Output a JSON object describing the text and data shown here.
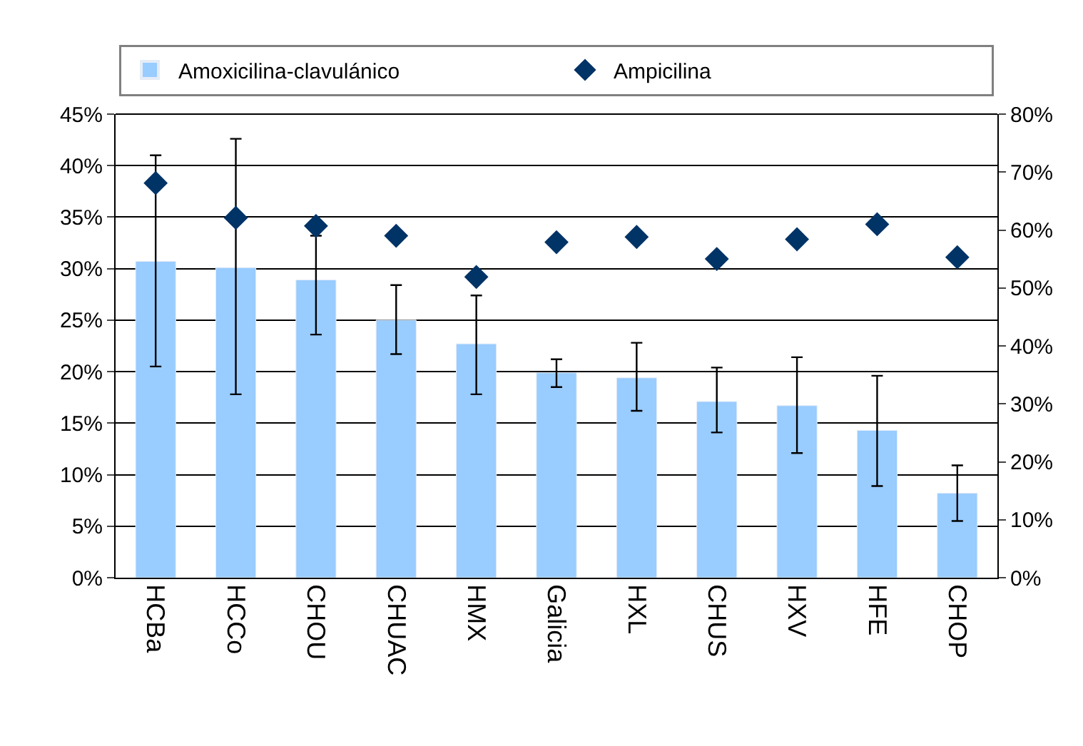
{
  "chart_data": {
    "type": "bar",
    "categories": [
      "HCBa",
      "HCCo",
      "CHOU",
      "CHUAC",
      "HMX",
      "Galicia",
      "HXL",
      "CHUS",
      "HXV",
      "HFE",
      "CHOP"
    ],
    "series": [
      {
        "name": "Amoxicilina-clavulánico",
        "color": "#99ccff",
        "values": [
          30.7,
          30.1,
          28.9,
          25.0,
          22.7,
          19.9,
          19.4,
          17.1,
          16.7,
          14.3,
          8.2
        ],
        "errors": [
          [
            20.5,
            41.0
          ],
          [
            17.8,
            42.6
          ],
          [
            23.6,
            33.2
          ],
          [
            21.7,
            28.4
          ],
          [
            17.8,
            27.4
          ],
          [
            18.5,
            21.2
          ],
          [
            16.2,
            22.8
          ],
          [
            14.1,
            20.4
          ],
          [
            12.1,
            21.4
          ],
          [
            8.9,
            19.6
          ],
          [
            5.5,
            10.9
          ]
        ]
      },
      {
        "name": "Ampicilina",
        "type": "scatter",
        "axis": "y2",
        "color": "#003366",
        "marker": "diamond",
        "values": [
          68.1,
          62.1,
          60.7,
          59.0,
          51.9,
          57.9,
          58.8,
          55.0,
          58.4,
          61.0,
          55.3
        ]
      }
    ],
    "ylim": [
      0,
      45
    ],
    "yticks": [
      {
        "value": 0,
        "label": "0%"
      },
      {
        "value": 5,
        "label": "5%"
      },
      {
        "value": 10,
        "label": "10%"
      },
      {
        "value": 15,
        "label": "15%"
      },
      {
        "value": 20,
        "label": "20%"
      },
      {
        "value": 25,
        "label": "25%"
      },
      {
        "value": 30,
        "label": "30%"
      },
      {
        "value": 35,
        "label": "35%"
      },
      {
        "value": 40,
        "label": "40%"
      },
      {
        "value": 45,
        "label": "45%"
      }
    ],
    "y2lim": [
      0,
      80
    ],
    "y2ticks": [
      {
        "value": 0,
        "label": "0%"
      },
      {
        "value": 10,
        "label": "10%"
      },
      {
        "value": 20,
        "label": "20%"
      },
      {
        "value": 30,
        "label": "30%"
      },
      {
        "value": 40,
        "label": "40%"
      },
      {
        "value": 50,
        "label": "50%"
      },
      {
        "value": 60,
        "label": "60%"
      },
      {
        "value": 70,
        "label": "70%"
      },
      {
        "value": 80,
        "label": "80%"
      }
    ],
    "grid": "y",
    "legend": "top"
  }
}
